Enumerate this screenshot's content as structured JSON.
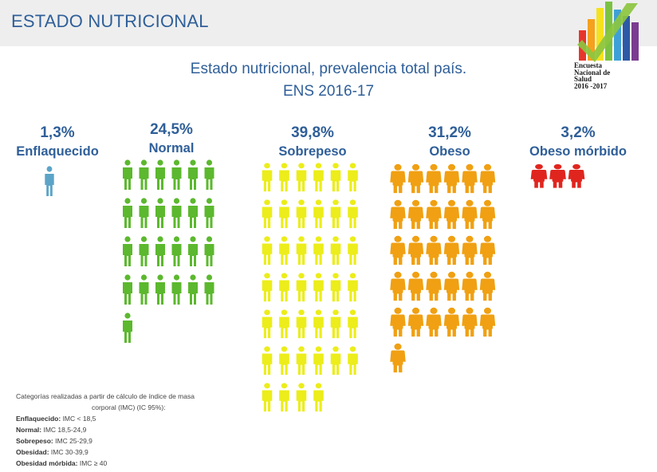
{
  "header": {
    "title": "ESTADO NUTRICIONAL"
  },
  "logo": {
    "lines": [
      "Encuesta",
      "Nacional de",
      "Salud",
      "2016 -2017"
    ],
    "colors": [
      "#e8352b",
      "#f4a11d",
      "#f5e21c",
      "#7cc242",
      "#3fa0d8",
      "#2d5aa6",
      "#7a3b91"
    ],
    "check_color": "#8cc63f"
  },
  "chart_title": [
    "Estado nutricional, prevalencia  total país.",
    "ENS 2016-17"
  ],
  "chart_data": {
    "type": "pictogram",
    "categories": [
      "Enflaquecido",
      "Normal",
      "Sobrepeso",
      "Obeso",
      "Obeso mórbido"
    ],
    "values": [
      1.3,
      24.5,
      39.8,
      31.2,
      3.2
    ],
    "labels": [
      "1,3%",
      "24,5%",
      "39,8%",
      "31,2%",
      "3,2%"
    ],
    "icon_counts": [
      1,
      25,
      40,
      31,
      3
    ],
    "colors": [
      "#5ba4c8",
      "#5cb82e",
      "#eced1a",
      "#f0a012",
      "#e0251e"
    ],
    "label_color": "#2f5f99"
  },
  "notes": {
    "intro": [
      "Categorías realizadas a partir de cálculo de índice de masa",
      "corporal (IMC) (IC 95%):"
    ],
    "items": [
      {
        "label": "Enflaquecido:",
        "text": " IMC < 18,5"
      },
      {
        "label": "Normal:",
        "text": " IMC  18,5-24,9"
      },
      {
        "label": "Sobrepeso:",
        "text": " IMC 25-29,9"
      },
      {
        "label": "Obesidad:",
        "text": " IMC 30-39,9"
      },
      {
        "label": "Obesidad mórbida:",
        "text": " IMC ≥ 40"
      }
    ]
  }
}
